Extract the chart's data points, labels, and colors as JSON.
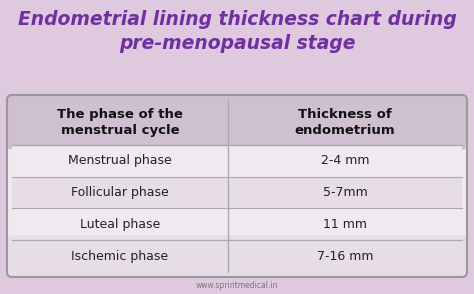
{
  "title_line1": "Endometrial lining thickness chart during",
  "title_line2": "pre-menopausal stage",
  "col1_header": "The phase of the\nmenstrual cycle",
  "col2_header": "Thickness of\nendometrium",
  "rows": [
    [
      "Menstrual phase",
      "2-4 mm"
    ],
    [
      "Follicular phase",
      "5-7mm"
    ],
    [
      "Luteal phase",
      "11 mm"
    ],
    [
      "Ischemic phase",
      "7-16 mm"
    ]
  ],
  "bg_color": "#dfc9df",
  "table_bg": "#f0eaf0",
  "header_bg": "#cfc0cf",
  "row_even_bg": "#f0eaf0",
  "row_odd_bg": "#e6dde6",
  "title_color": "#7030a0",
  "header_text_color": "#111111",
  "row_text_color": "#222222",
  "footer_text": "www.sprintmedical.in",
  "divider_color": "#aaaaaa",
  "table_border_color": "#999999",
  "title_fontsize": 13.5,
  "header_fontsize": 9.5,
  "row_fontsize": 9.0,
  "footer_fontsize": 5.5
}
